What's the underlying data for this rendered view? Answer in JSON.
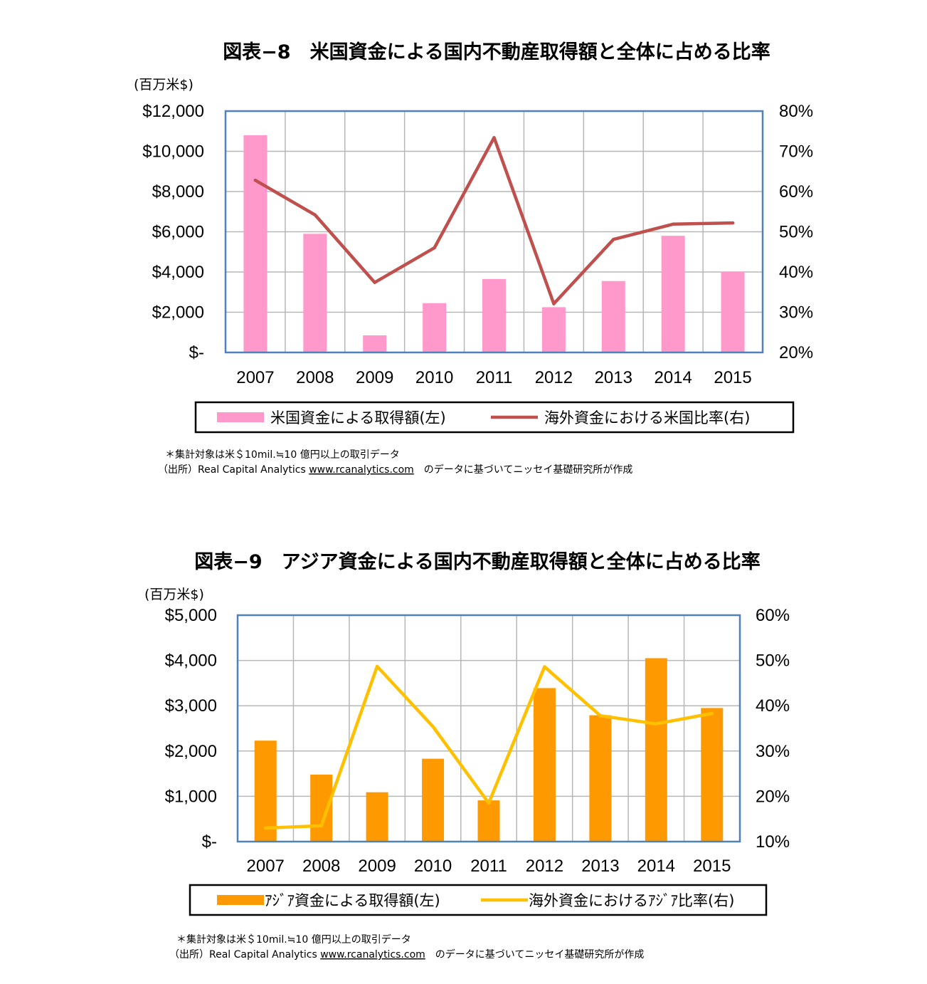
{
  "chart_data": [
    {
      "type": "bar",
      "title": "図表−8　米国資金による国内不動産取得額と全体に占める比率",
      "unit_label": "(百万米$)",
      "categories": [
        "2007",
        "2008",
        "2009",
        "2010",
        "2011",
        "2012",
        "2013",
        "2014",
        "2015"
      ],
      "y_left": {
        "min": 0,
        "max": 12000,
        "step": 2000,
        "ticks": [
          "$-",
          "$2,000",
          "$4,000",
          "$6,000",
          "$8,000",
          "$10,000",
          "$12,000"
        ]
      },
      "y_right": {
        "min": 20,
        "max": 80,
        "step": 10,
        "ticks": [
          "20%",
          "30%",
          "40%",
          "50%",
          "60%",
          "70%",
          "80%"
        ]
      },
      "grid": true,
      "legend_position": "bottom",
      "series": [
        {
          "name": "米国資金による取得額(左)",
          "type": "bar",
          "axis": "left",
          "color": "#ff99cc",
          "values": [
            10800,
            5900,
            850,
            2450,
            3650,
            2250,
            3550,
            5800,
            4000
          ]
        },
        {
          "name": "海外資金における米国比率(右)",
          "type": "line",
          "axis": "right",
          "color": "#c0504d",
          "values": [
            62.8,
            54.2,
            37.4,
            46.0,
            73.4,
            32.1,
            48.1,
            51.9,
            52.2
          ]
        }
      ],
      "notes": [
        "＊集計対象は米＄10mil.≒10 億円以上の取引データ",
        "（出所）Real Capital Analytics ",
        "www.rcanalytics.com",
        "　のデータに基づいてニッセイ基礎研究所が作成"
      ]
    },
    {
      "type": "bar",
      "title": "図表−9　アジア資金による国内不動産取得額と全体に占める比率",
      "unit_label": "(百万米$)",
      "categories": [
        "2007",
        "2008",
        "2009",
        "2010",
        "2011",
        "2012",
        "2013",
        "2014",
        "2015"
      ],
      "y_left": {
        "min": 0,
        "max": 5000,
        "step": 1000,
        "ticks": [
          "$-",
          "$1,000",
          "$2,000",
          "$3,000",
          "$4,000",
          "$5,000"
        ]
      },
      "y_right": {
        "min": 10,
        "max": 60,
        "step": 10,
        "ticks": [
          "10%",
          "20%",
          "30%",
          "40%",
          "50%",
          "60%"
        ]
      },
      "grid": true,
      "legend_position": "bottom",
      "series": [
        {
          "name": "ｱｼﾞｱ資金による取得額(左)",
          "type": "bar",
          "axis": "left",
          "color": "#ff9900",
          "values": [
            2230,
            1480,
            1090,
            1830,
            910,
            3390,
            2790,
            4050,
            2950
          ]
        },
        {
          "name": "海外資金におけるｱｼﾞｱ比率(右)",
          "type": "line",
          "axis": "right",
          "color": "#ffc000",
          "values": [
            13.0,
            13.5,
            48.7,
            35.4,
            18.5,
            48.6,
            37.8,
            36.0,
            38.3
          ]
        }
      ],
      "notes": [
        "＊集計対象は米＄10mil.≒10 億円以上の取引データ",
        "（出所）Real Capital Analytics ",
        "www.rcanalytics.com",
        "　のデータに基づいてニッセイ基礎研究所が作成"
      ]
    }
  ]
}
